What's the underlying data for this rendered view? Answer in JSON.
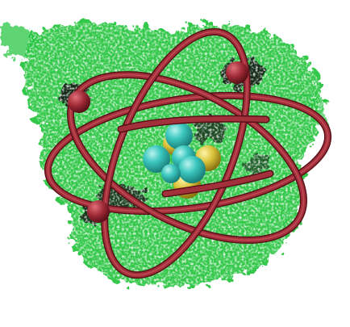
{
  "image": {
    "subject": "atom-illustration",
    "colors": {
      "background": "#ffffff",
      "cloud_green": "#1ec238",
      "cloud_dark": "#0d0d0d",
      "orbit_red": "#a3313c",
      "orbit_highlight": "#c9505b",
      "proton_cyan": "#3cc8c0",
      "neutron_yellow": "#d9c23a"
    },
    "parts": {
      "orbit_count": 3,
      "electron_count": 3,
      "proton_count": 5,
      "neutron_count": 3
    }
  }
}
